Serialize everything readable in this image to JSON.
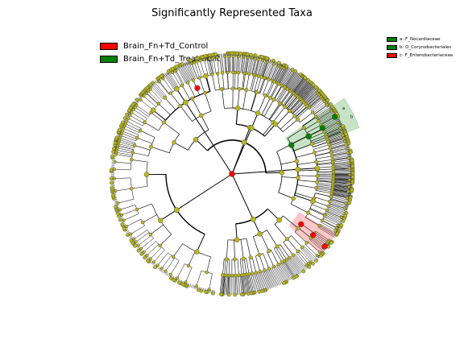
{
  "title": "Significantly Represented Taxa",
  "legend": [
    {
      "label": "Brain_Fn+Td_Control",
      "color": "#ff0000"
    },
    {
      "label": "Brain_Fn+Td_Treatment",
      "color": "#008000"
    }
  ],
  "clade_legend": [
    {
      "label": "a: F_Nocardiaceae",
      "color": "#008000"
    },
    {
      "label": "b: O_Corynebacteriales",
      "color": "#008000"
    },
    {
      "label": "c: F_Enterobacteriaceae",
      "color": "#ff0000"
    }
  ],
  "clade_letters": [
    "a",
    "b",
    "c"
  ],
  "colors": {
    "node": "#b8b81e",
    "control": "#ff0000",
    "treatment": "#008000",
    "edge": "#000000"
  }
}
